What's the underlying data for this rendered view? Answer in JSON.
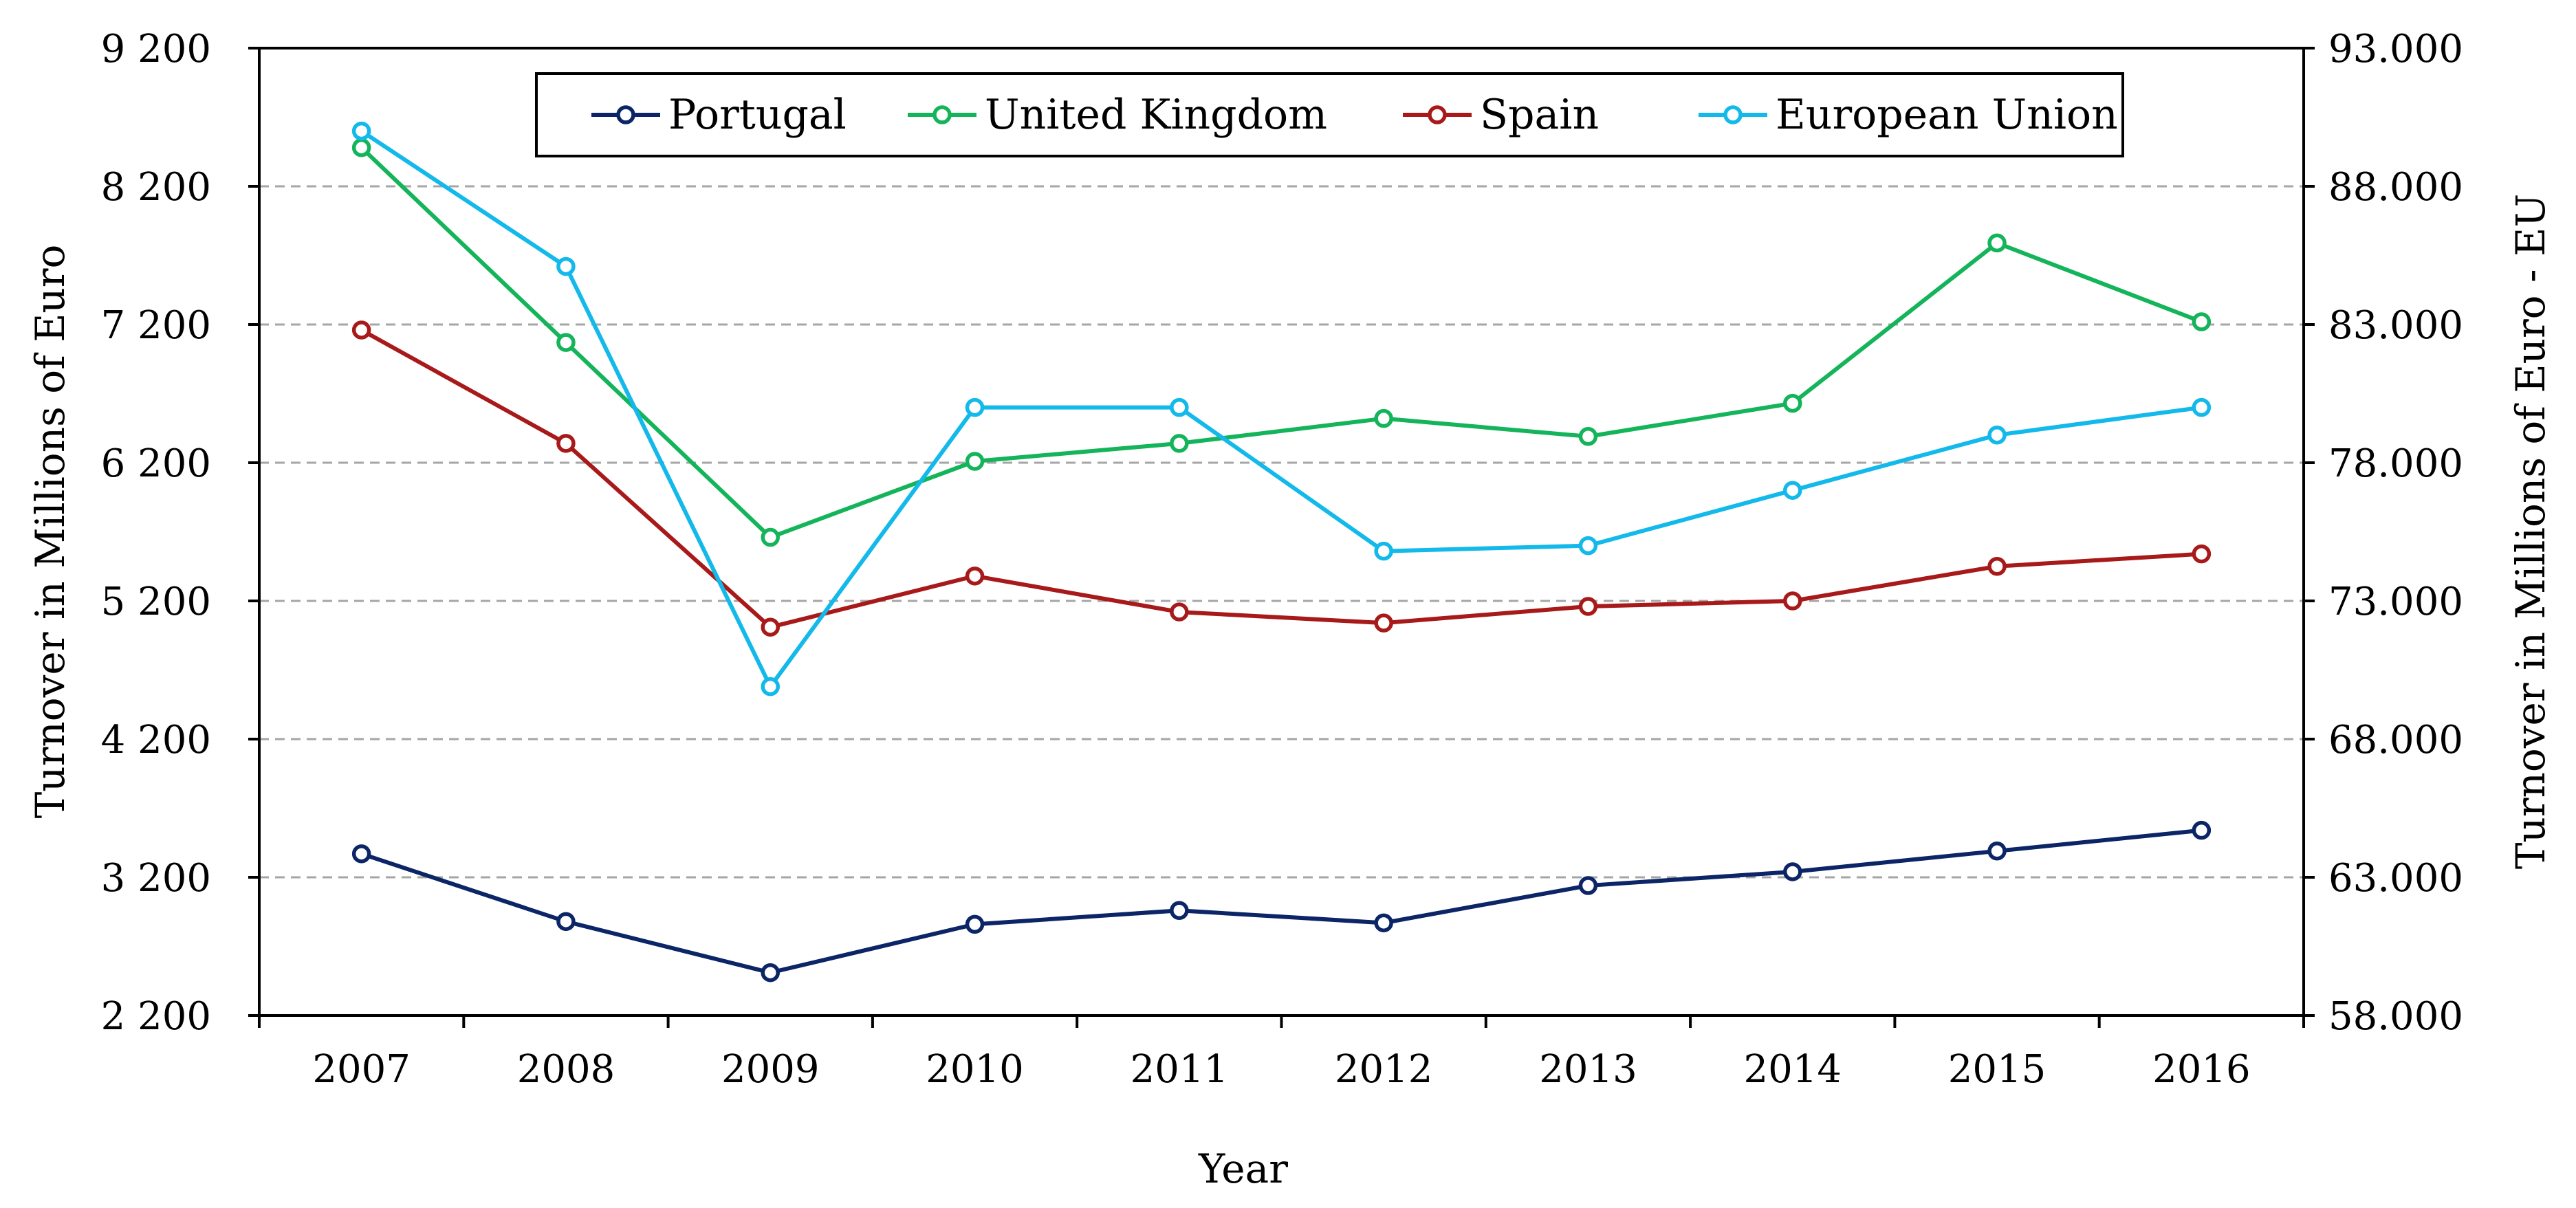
{
  "chart_data": {
    "type": "line",
    "title": "",
    "xlabel": "Year",
    "ylabel_left": "Turnover in Millions of Euro",
    "ylabel_right": "Turnover in Millions of Euro - EU",
    "categories": [
      "2007",
      "2008",
      "2009",
      "2010",
      "2011",
      "2012",
      "2013",
      "2014",
      "2015",
      "2016"
    ],
    "y_left": {
      "min": 2200,
      "max": 9200,
      "step": 1000,
      "tick_labels": [
        "2 200",
        "3 200",
        "4 200",
        "5 200",
        "6 200",
        "7 200",
        "8 200",
        "9 200"
      ]
    },
    "y_right": {
      "min": 58000,
      "max": 93000,
      "step": 5000,
      "tick_labels": [
        "58.000",
        "63.000",
        "68.000",
        "73.000",
        "78.000",
        "83.000",
        "88.000",
        "93.000"
      ]
    },
    "grid": "horizontal dashed",
    "legend_position": "top-center",
    "series": [
      {
        "name": "Portugal",
        "axis": "left",
        "color": "#0b2566",
        "values": [
          3370,
          2880,
          2510,
          2860,
          2960,
          2870,
          3140,
          3240,
          3390,
          3540
        ]
      },
      {
        "name": "United Kingdom",
        "axis": "left",
        "color": "#13b45a",
        "values": [
          8480,
          7070,
          5660,
          6210,
          6340,
          6520,
          6390,
          6630,
          7790,
          7220
        ]
      },
      {
        "name": "Spain",
        "axis": "left",
        "color": "#a81a1a",
        "values": [
          7160,
          6340,
          5010,
          5380,
          5120,
          5040,
          5160,
          5200,
          5450,
          5540
        ]
      },
      {
        "name": "European Union",
        "axis": "right",
        "color": "#12b9ea",
        "values": [
          90000,
          85100,
          69900,
          80000,
          80000,
          74800,
          75000,
          77000,
          79000,
          80000
        ]
      }
    ]
  }
}
